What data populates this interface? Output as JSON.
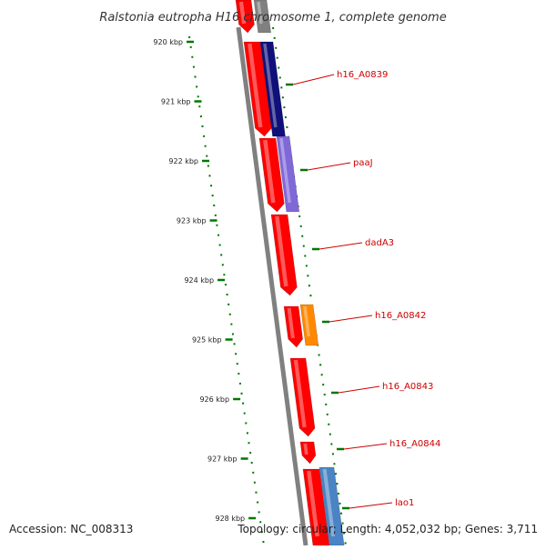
{
  "title": "Ralstonia eutropha H16 chromosome 1, complete genome",
  "footer": {
    "accession": "Accession: NC_008313",
    "summary": "Topology: circular; Length: 4,052,032 bp; Genes: 3,711"
  },
  "ticks": [
    "920 kbp",
    "921 kbp",
    "922 kbp",
    "923 kbp",
    "924 kbp",
    "925 kbp",
    "926 kbp",
    "927 kbp",
    "928 kbp"
  ],
  "gene_labels": [
    "h16_A0839",
    "paaJ",
    "dadA3",
    "h16_A0842",
    "h16_A0843",
    "h16_A0844",
    "lao1"
  ],
  "colors": {
    "cds": "#ff0000",
    "gene": "#e00000",
    "backbone": "#808080",
    "dark_blue": "#10107a",
    "lavender": "#8068d8",
    "orange": "#ff8800",
    "steel_blue": "#4a84c4",
    "tick": "#007700",
    "label": "#cc0000"
  }
}
